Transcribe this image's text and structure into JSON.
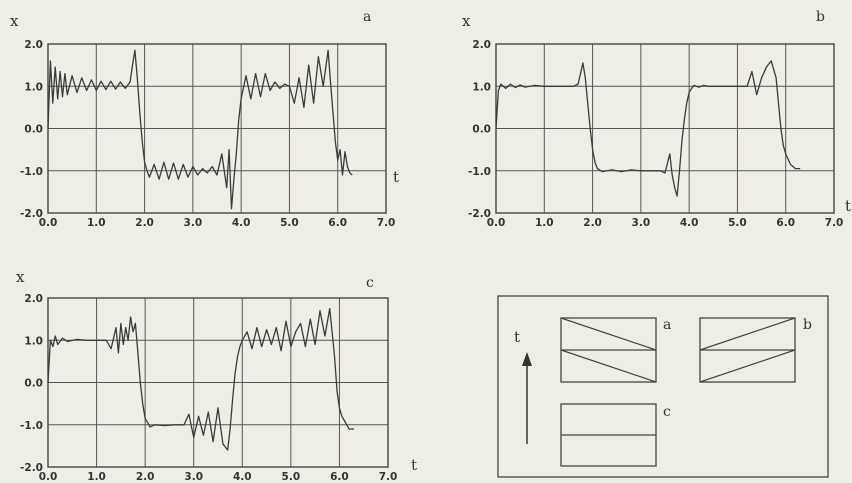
{
  "chart_data": [
    {
      "type": "line",
      "panel": "a",
      "xlabel": "t",
      "ylabel": "x",
      "xlim": [
        0,
        7
      ],
      "ylim": [
        -2,
        2
      ],
      "xticks": [
        "0.0",
        "1.0",
        "2.0",
        "3.0",
        "4.0",
        "5.0",
        "6.0",
        "7.0"
      ],
      "yticks": [
        "2.0",
        "1.0",
        "0.0",
        "-1.0",
        "-2.0"
      ],
      "grid": true,
      "series": [
        {
          "x": [
            0,
            0.05,
            0.1,
            0.15,
            0.2,
            0.25,
            0.3,
            0.35,
            0.4,
            0.5,
            0.6,
            0.7,
            0.8,
            0.9,
            1.0,
            1.1,
            1.2,
            1.3,
            1.4,
            1.5,
            1.6,
            1.7,
            1.75,
            1.8,
            1.85,
            1.9,
            1.95,
            2.0,
            2.05,
            2.1,
            2.2,
            2.3,
            2.4,
            2.5,
            2.6,
            2.7,
            2.8,
            2.9,
            3.0,
            3.1,
            3.2,
            3.3,
            3.4,
            3.5,
            3.6,
            3.7,
            3.75,
            3.8,
            3.85,
            3.9,
            3.95,
            4.0,
            4.1,
            4.2,
            4.3,
            4.4,
            4.5,
            4.6,
            4.7,
            4.8,
            4.9,
            5.0,
            5.1,
            5.2,
            5.3,
            5.4,
            5.5,
            5.6,
            5.7,
            5.8,
            5.85,
            5.9,
            5.95,
            6.0,
            6.05,
            6.1,
            6.15,
            6.2,
            6.25,
            6.3
          ],
          "y": [
            0,
            1.6,
            0.6,
            1.45,
            0.7,
            1.35,
            0.75,
            1.3,
            0.8,
            1.25,
            0.85,
            1.2,
            0.9,
            1.15,
            0.9,
            1.12,
            0.92,
            1.12,
            0.93,
            1.1,
            0.95,
            1.1,
            1.5,
            1.85,
            1.2,
            0.4,
            -0.3,
            -0.8,
            -1.0,
            -1.15,
            -0.85,
            -1.2,
            -0.8,
            -1.2,
            -0.82,
            -1.2,
            -0.85,
            -1.15,
            -0.9,
            -1.1,
            -0.95,
            -1.05,
            -0.9,
            -1.1,
            -0.6,
            -1.4,
            -0.5,
            -1.9,
            -1.2,
            -0.6,
            0.2,
            0.7,
            1.25,
            0.7,
            1.3,
            0.75,
            1.3,
            0.9,
            1.1,
            0.95,
            1.05,
            1.0,
            0.6,
            1.2,
            0.5,
            1.5,
            0.6,
            1.7,
            1.0,
            1.85,
            1.1,
            0.4,
            -0.3,
            -0.75,
            -0.5,
            -1.1,
            -0.55,
            -0.9,
            -1.05,
            -1.1
          ]
        }
      ]
    },
    {
      "type": "line",
      "panel": "b",
      "xlabel": "t",
      "ylabel": "x",
      "xlim": [
        0,
        7
      ],
      "ylim": [
        -2,
        2
      ],
      "xticks": [
        "0.0",
        "1.0",
        "2.0",
        "3.0",
        "4.0",
        "5.0",
        "6.0",
        "7.0"
      ],
      "yticks": [
        "2.0",
        "1.0",
        "0.0",
        "-1.0",
        "-2.0"
      ],
      "grid": true,
      "series": [
        {
          "x": [
            0,
            0.05,
            0.1,
            0.2,
            0.3,
            0.4,
            0.5,
            0.6,
            0.8,
            1.0,
            1.2,
            1.4,
            1.6,
            1.7,
            1.75,
            1.8,
            1.85,
            1.9,
            1.95,
            2.0,
            2.05,
            2.1,
            2.2,
            2.4,
            2.6,
            2.8,
            3.0,
            3.2,
            3.4,
            3.5,
            3.6,
            3.65,
            3.7,
            3.75,
            3.8,
            3.85,
            3.9,
            3.95,
            4.0,
            4.05,
            4.1,
            4.2,
            4.3,
            4.4,
            4.6,
            4.8,
            5.0,
            5.2,
            5.3,
            5.4,
            5.5,
            5.6,
            5.7,
            5.8,
            5.85,
            5.9,
            5.95,
            6.0,
            6.1,
            6.2,
            6.3
          ],
          "y": [
            0,
            0.9,
            1.05,
            0.95,
            1.05,
            0.97,
            1.03,
            0.98,
            1.02,
            1.0,
            1.0,
            1.0,
            1.0,
            1.05,
            1.3,
            1.55,
            1.2,
            0.6,
            0.0,
            -0.5,
            -0.8,
            -0.95,
            -1.02,
            -0.98,
            -1.02,
            -0.98,
            -1.0,
            -1.0,
            -1.0,
            -1.05,
            -0.6,
            -1.1,
            -1.4,
            -1.6,
            -1.0,
            -0.3,
            0.2,
            0.6,
            0.85,
            0.95,
            1.02,
            0.98,
            1.02,
            1.0,
            1.0,
            1.0,
            1.0,
            1.0,
            1.35,
            0.8,
            1.2,
            1.45,
            1.6,
            1.2,
            0.6,
            0.0,
            -0.4,
            -0.6,
            -0.85,
            -0.95,
            -0.95
          ]
        }
      ]
    },
    {
      "type": "line",
      "panel": "c",
      "xlabel": "t",
      "ylabel": "x",
      "xlim": [
        0,
        7
      ],
      "ylim": [
        -2,
        2
      ],
      "xticks": [
        "0.0",
        "1.0",
        "2.0",
        "3.0",
        "4.0",
        "5.0",
        "6.0",
        "7.0"
      ],
      "yticks": [
        "2.0",
        "1.0",
        "0.0",
        "-1.0",
        "-2.0"
      ],
      "grid": true,
      "series": [
        {
          "x": [
            0,
            0.05,
            0.1,
            0.15,
            0.2,
            0.3,
            0.4,
            0.6,
            0.8,
            1.0,
            1.2,
            1.3,
            1.4,
            1.45,
            1.5,
            1.55,
            1.6,
            1.65,
            1.7,
            1.75,
            1.8,
            1.85,
            1.9,
            1.95,
            2.0,
            2.05,
            2.1,
            2.2,
            2.4,
            2.6,
            2.8,
            2.9,
            3.0,
            3.1,
            3.2,
            3.3,
            3.4,
            3.5,
            3.6,
            3.7,
            3.75,
            3.8,
            3.85,
            3.9,
            3.95,
            4.0,
            4.1,
            4.2,
            4.3,
            4.4,
            4.5,
            4.6,
            4.7,
            4.8,
            4.9,
            5.0,
            5.1,
            5.2,
            5.3,
            5.4,
            5.5,
            5.6,
            5.7,
            5.8,
            5.85,
            5.9,
            5.95,
            6.0,
            6.05,
            6.1,
            6.15,
            6.2,
            6.3
          ],
          "y": [
            0,
            1.0,
            0.85,
            1.1,
            0.9,
            1.05,
            0.97,
            1.02,
            1.0,
            1.0,
            1.0,
            0.8,
            1.3,
            0.7,
            1.4,
            0.9,
            1.3,
            1.0,
            1.55,
            1.2,
            1.4,
            0.7,
            0.0,
            -0.5,
            -0.85,
            -0.95,
            -1.05,
            -1.0,
            -1.02,
            -1.0,
            -1.0,
            -0.75,
            -1.3,
            -0.8,
            -1.25,
            -0.7,
            -1.4,
            -0.6,
            -1.45,
            -1.6,
            -1.1,
            -0.4,
            0.2,
            0.6,
            0.85,
            1.0,
            1.2,
            0.8,
            1.3,
            0.85,
            1.25,
            0.9,
            1.3,
            0.75,
            1.45,
            0.85,
            1.2,
            1.4,
            0.85,
            1.5,
            0.9,
            1.7,
            1.1,
            1.75,
            1.2,
            0.6,
            -0.2,
            -0.6,
            -0.8,
            -0.9,
            -1.0,
            -1.1,
            -1.1
          ]
        }
      ]
    }
  ],
  "inset": {
    "axis_label": "t",
    "panel_labels": [
      "a",
      "b",
      "c"
    ]
  }
}
